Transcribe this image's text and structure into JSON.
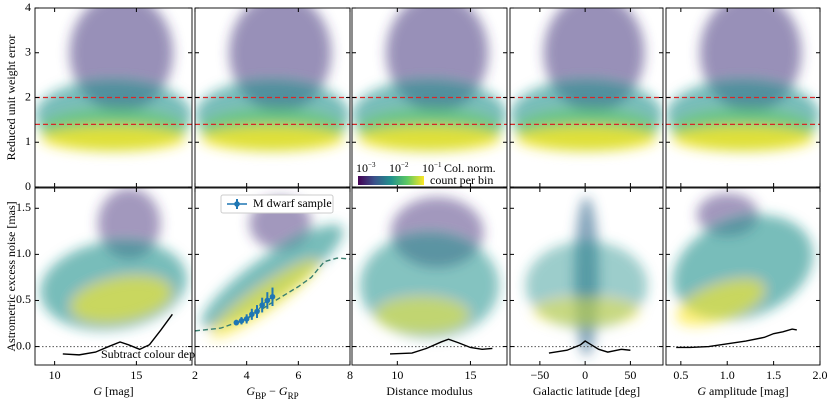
{
  "chart_data": [
    {
      "type": "heatmap",
      "xlim": [
        8.8,
        18.4
      ],
      "ylim": [
        0,
        4
      ],
      "xticks": [
        10,
        15
      ],
      "yticks": [
        0,
        1,
        2,
        3,
        4
      ],
      "xticklabels": false,
      "yticklabels": true,
      "ylabel": "Reduced unit weight error",
      "hlines": [
        {
          "value": 2.0,
          "color": "#d62728",
          "style": "dashed"
        },
        {
          "value": 1.4,
          "color": "#d62728",
          "style": "dashed"
        }
      ]
    },
    {
      "type": "heatmap",
      "xlim": [
        2,
        8
      ],
      "ylim": [
        0,
        4
      ],
      "xticks": [
        2,
        4,
        6,
        8
      ],
      "yticks": [
        0,
        1,
        2,
        3,
        4
      ],
      "xticklabels": false,
      "yticklabels": false,
      "hlines": [
        {
          "value": 2.0,
          "color": "#d62728",
          "style": "dashed"
        },
        {
          "value": 1.4,
          "color": "#d62728",
          "style": "dashed"
        }
      ]
    },
    {
      "type": "heatmap",
      "xlim": [
        6.9,
        17.5
      ],
      "ylim": [
        0,
        4
      ],
      "xticks": [
        10,
        15
      ],
      "yticks": [
        0,
        1,
        2,
        3,
        4
      ],
      "xticklabels": false,
      "yticklabels": false,
      "hlines": [
        {
          "value": 2.0,
          "color": "#d62728",
          "style": "dashed"
        },
        {
          "value": 1.4,
          "color": "#d62728",
          "style": "dashed"
        }
      ],
      "colorbar": {
        "labels": [
          {
            "base": "10",
            "exp": "−3"
          },
          {
            "base": "10",
            "exp": "−2"
          },
          {
            "base": "10",
            "exp": "−1"
          }
        ],
        "title": [
          "Col. norm.",
          "count per bin"
        ]
      }
    },
    {
      "type": "heatmap",
      "xlim": [
        -83,
        86
      ],
      "ylim": [
        0,
        4
      ],
      "xticks": [
        -50,
        0,
        50
      ],
      "yticks": [
        0,
        1,
        2,
        3,
        4
      ],
      "xticklabels": false,
      "yticklabels": false,
      "hlines": [
        {
          "value": 2.0,
          "color": "#d62728",
          "style": "dashed"
        },
        {
          "value": 1.4,
          "color": "#d62728",
          "style": "dashed"
        }
      ]
    },
    {
      "type": "heatmap",
      "xlim": [
        0.34,
        2.0
      ],
      "ylim": [
        0,
        4
      ],
      "xticks": [
        0.5,
        1.0,
        1.5,
        2.0
      ],
      "yticks": [
        0,
        1,
        2,
        3,
        4
      ],
      "xticklabels": false,
      "yticklabels": false,
      "hlines": [
        {
          "value": 2.0,
          "color": "#d62728",
          "style": "dashed"
        },
        {
          "value": 1.4,
          "color": "#d62728",
          "style": "dashed"
        }
      ]
    },
    {
      "type": "heatmap",
      "xlim": [
        8.8,
        18.4
      ],
      "ylim": [
        -0.2,
        1.72
      ],
      "xticks": [
        10,
        15
      ],
      "yticks": [
        {
          "value": 0,
          "label": "0.0"
        },
        {
          "value": 0.5,
          "label": "0.5"
        },
        {
          "value": 1,
          "label": "1.0"
        },
        {
          "value": 1.5,
          "label": "1.5"
        }
      ],
      "xticklabels": true,
      "yticklabels": true,
      "ylabel": "Astrometric excess noise [mas]",
      "xlabel": [
        {
          "text": "G",
          "style": "italic"
        },
        {
          "text": " [mag]",
          "style": "normal"
        }
      ],
      "hlines": [
        {
          "value": 0,
          "color": "#555555",
          "style": "dotted"
        }
      ],
      "series": [
        {
          "color": "#000000",
          "style": "solid",
          "x": [
            10.5,
            11.5,
            12.5,
            13.3,
            14,
            14.5,
            15.2,
            15.8,
            16.5,
            17.2
          ],
          "values": [
            -0.08,
            -0.09,
            -0.06,
            0.0,
            0.05,
            0.02,
            -0.03,
            0.02,
            0.18,
            0.35
          ]
        }
      ],
      "annotation": "Subtract colour dep."
    },
    {
      "type": "heatmap",
      "xlim": [
        2,
        8
      ],
      "ylim": [
        -0.2,
        1.72
      ],
      "xticks": [
        2,
        4,
        6,
        8
      ],
      "yticks": [
        {
          "value": 0,
          "label": "0.0"
        },
        {
          "value": 0.5,
          "label": "0.5"
        },
        {
          "value": 1,
          "label": "1.0"
        },
        {
          "value": 1.5,
          "label": "1.5"
        }
      ],
      "xticklabels": true,
      "yticklabels": false,
      "xlabel": [
        {
          "text": "G",
          "style": "italic"
        },
        {
          "text": "BP",
          "style": "sub"
        },
        {
          "text": " − ",
          "style": "normal"
        },
        {
          "text": "G",
          "style": "italic"
        },
        {
          "text": "RP",
          "style": "sub"
        }
      ],
      "hlines": [
        {
          "value": 0,
          "color": "#555555",
          "style": "dotted"
        }
      ],
      "series": [
        {
          "color": "#3a7f6f",
          "style": "dashed",
          "x": [
            2,
            3,
            4,
            5,
            6,
            6.5,
            7,
            7.5,
            8
          ],
          "values": [
            0.17,
            0.2,
            0.3,
            0.48,
            0.65,
            0.75,
            0.92,
            0.96,
            0.95
          ]
        },
        {
          "name": "M dwarf sample",
          "color": "#1f77b4",
          "style": "errorbar",
          "x": [
            3.6,
            3.8,
            4.0,
            4.2,
            4.4,
            4.6,
            4.8,
            5.0
          ],
          "values": [
            0.26,
            0.28,
            0.3,
            0.35,
            0.38,
            0.45,
            0.5,
            0.54
          ],
          "errors": [
            0.03,
            0.04,
            0.05,
            0.06,
            0.07,
            0.08,
            0.09,
            0.1
          ]
        }
      ]
    },
    {
      "type": "heatmap",
      "xlim": [
        6.9,
        17.5
      ],
      "ylim": [
        -0.2,
        1.72
      ],
      "xticks": [
        10,
        15
      ],
      "yticks": [
        {
          "value": 0,
          "label": "0.0"
        },
        {
          "value": 0.5,
          "label": "0.5"
        },
        {
          "value": 1,
          "label": "1.0"
        },
        {
          "value": 1.5,
          "label": "1.5"
        }
      ],
      "xticklabels": true,
      "yticklabels": false,
      "xlabel": [
        {
          "text": "Distance modulus",
          "style": "normal"
        }
      ],
      "hlines": [
        {
          "value": 0,
          "color": "#555555",
          "style": "dotted"
        }
      ],
      "series": [
        {
          "color": "#000000",
          "style": "solid",
          "x": [
            9.5,
            11,
            12,
            13,
            13.5,
            14.2,
            15,
            15.8,
            16.5
          ],
          "values": [
            -0.08,
            -0.07,
            -0.02,
            0.05,
            0.08,
            0.04,
            -0.01,
            -0.03,
            -0.02
          ]
        }
      ]
    },
    {
      "type": "heatmap",
      "xlim": [
        -83,
        86
      ],
      "ylim": [
        -0.2,
        1.72
      ],
      "xticks": [
        {
          "value": -50,
          "label": "−50"
        },
        0,
        50
      ],
      "yticks": [
        {
          "value": 0,
          "label": "0.0"
        },
        {
          "value": 0.5,
          "label": "0.5"
        },
        {
          "value": 1,
          "label": "1.0"
        },
        {
          "value": 1.5,
          "label": "1.5"
        }
      ],
      "xticklabels": true,
      "yticklabels": false,
      "xlabel": [
        {
          "text": "Galactic latitude [deg]",
          "style": "normal"
        }
      ],
      "hlines": [
        {
          "value": 0,
          "color": "#555555",
          "style": "dotted"
        }
      ],
      "series": [
        {
          "color": "#000000",
          "style": "solid",
          "x": [
            -40,
            -20,
            -5,
            0,
            5,
            15,
            25,
            40,
            50
          ],
          "values": [
            -0.07,
            -0.04,
            0.02,
            0.06,
            0.03,
            -0.03,
            -0.06,
            -0.03,
            -0.04
          ]
        }
      ]
    },
    {
      "type": "heatmap",
      "xlim": [
        0.34,
        2.0
      ],
      "ylim": [
        -0.2,
        1.72
      ],
      "xticks": [
        {
          "value": 0.5,
          "label": "0.5"
        },
        {
          "value": 1,
          "label": "1.0"
        },
        {
          "value": 1.5,
          "label": "1.5"
        },
        {
          "value": 2,
          "label": "2.0"
        }
      ],
      "yticks": [
        {
          "value": 0,
          "label": "0.0"
        },
        {
          "value": 0.5,
          "label": "0.5"
        },
        {
          "value": 1,
          "label": "1.0"
        },
        {
          "value": 1.5,
          "label": "1.5"
        }
      ],
      "xticklabels": true,
      "yticklabels": false,
      "xlabel": [
        {
          "text": "G",
          "style": "italic"
        },
        {
          "text": " amplitude [mag]",
          "style": "normal"
        }
      ],
      "hlines": [
        {
          "value": 0,
          "color": "#555555",
          "style": "dotted"
        }
      ],
      "series": [
        {
          "color": "#000000",
          "style": "solid",
          "x": [
            0.45,
            0.6,
            0.8,
            1.0,
            1.2,
            1.4,
            1.5,
            1.6,
            1.7,
            1.75
          ],
          "values": [
            -0.01,
            -0.01,
            0.0,
            0.03,
            0.06,
            0.1,
            0.14,
            0.16,
            0.19,
            0.18
          ]
        }
      ]
    }
  ]
}
